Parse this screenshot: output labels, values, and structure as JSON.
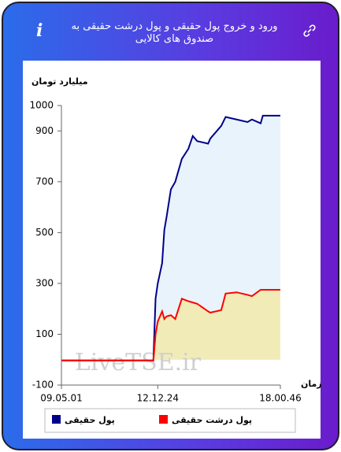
{
  "chart_data": {
    "type": "line",
    "title": "ورود و خروج پول حقیقی و پول درشت حقیقی به صندوق های کالایی",
    "ylabel": "میلیارد تومان",
    "xlabel": "زمان",
    "watermark": "LiveTSE.ir",
    "x": [
      0,
      42,
      43,
      44,
      46,
      47,
      48,
      50,
      52,
      55,
      58,
      60,
      62,
      67,
      68,
      73,
      75,
      80,
      85,
      87,
      91,
      92,
      100
    ],
    "xlim": [
      0,
      100
    ],
    "xticks": [
      {
        "value": 0,
        "label": "09.05.01"
      },
      {
        "value": 44,
        "label": "12.12.24"
      },
      {
        "value": 100,
        "label": "18.00.46"
      }
    ],
    "ylim": [
      -100,
      1000
    ],
    "yticks": [
      -100,
      100,
      300,
      500,
      700,
      900,
      1000
    ],
    "series": [
      {
        "name": "پول حقیقی",
        "color": "#00008b",
        "fill": "#e8f3fb",
        "values": [
          -3,
          -3,
          240,
          300,
          380,
          510,
          560,
          670,
          700,
          790,
          830,
          880,
          860,
          850,
          870,
          920,
          955,
          945,
          935,
          945,
          930,
          960,
          960
        ]
      },
      {
        "name": "پول درشت حقیقی",
        "color": "#ff0000",
        "fill": "#f1ebb8",
        "values": [
          -3,
          -3,
          100,
          150,
          190,
          160,
          170,
          175,
          160,
          240,
          230,
          225,
          220,
          190,
          185,
          195,
          260,
          265,
          255,
          250,
          275,
          275,
          275
        ]
      }
    ]
  }
}
